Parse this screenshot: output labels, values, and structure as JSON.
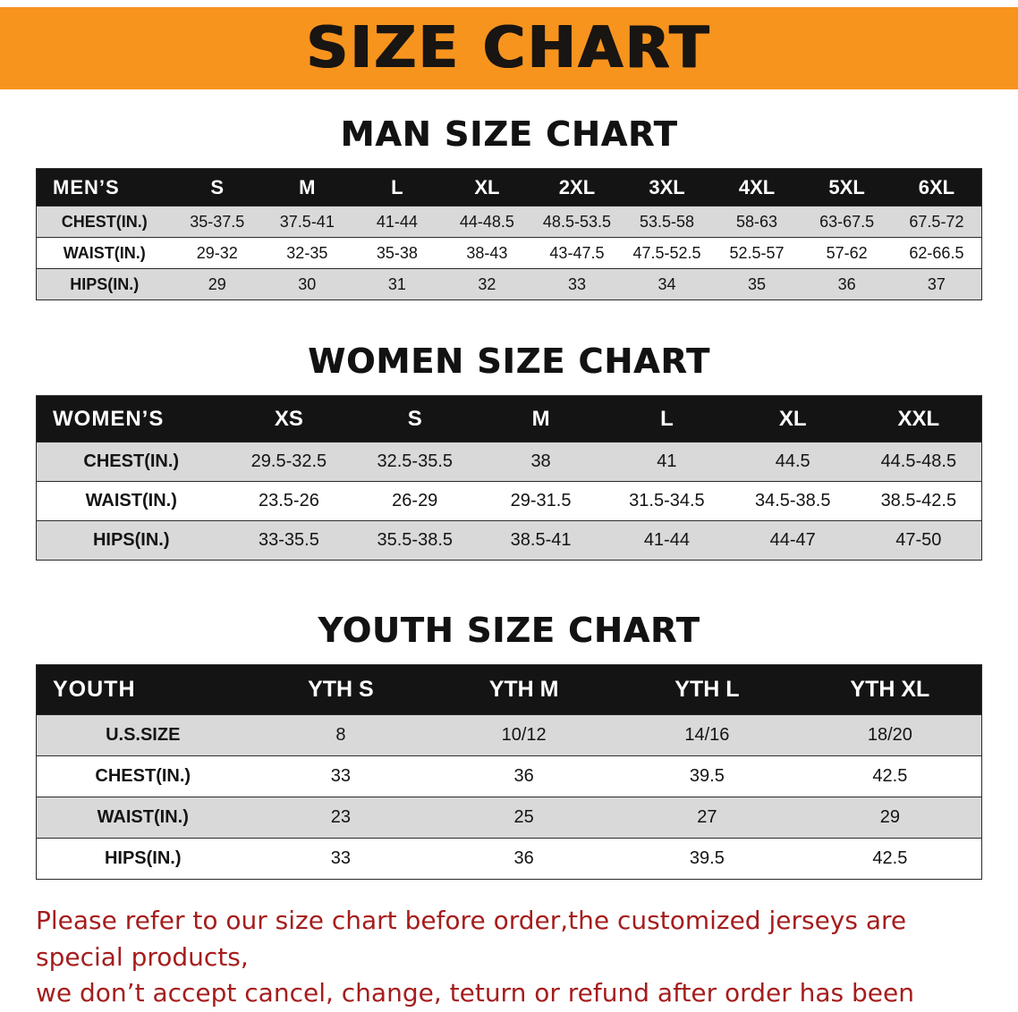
{
  "banner": {
    "title": "SIZE CHART"
  },
  "colors": {
    "banner_bg": "#f7941e",
    "table_header_bg": "#141414",
    "row_stripe": "#d9d9d9",
    "disclaimer_color": "#a51d1d"
  },
  "sections": [
    {
      "heading": "MAN SIZE CHART",
      "table": {
        "name": "mens-size-table",
        "header_label": "MEN’S",
        "columns": [
          "S",
          "M",
          "L",
          "XL",
          "2XL",
          "3XL",
          "4XL",
          "5XL",
          "6XL"
        ],
        "rows": [
          {
            "label": "CHEST(IN.)",
            "values": [
              "35-37.5",
              "37.5-41",
              "41-44",
              "44-48.5",
              "48.5-53.5",
              "53.5-58",
              "58-63",
              "63-67.5",
              "67.5-72"
            ]
          },
          {
            "label": "WAIST(IN.)",
            "values": [
              "29-32",
              "32-35",
              "35-38",
              "38-43",
              "43-47.5",
              "47.5-52.5",
              "52.5-57",
              "57-62",
              "62-66.5"
            ]
          },
          {
            "label": "HIPS(IN.)",
            "values": [
              "29",
              "30",
              "31",
              "32",
              "33",
              "34",
              "35",
              "36",
              "37"
            ]
          }
        ]
      }
    },
    {
      "heading": "WOMEN SIZE CHART",
      "table": {
        "name": "womens-size-table",
        "header_label": "WOMEN’S",
        "columns": [
          "XS",
          "S",
          "M",
          "L",
          "XL",
          "XXL"
        ],
        "rows": [
          {
            "label": "CHEST(IN.)",
            "values": [
              "29.5-32.5",
              "32.5-35.5",
              "38",
              "41",
              "44.5",
              "44.5-48.5"
            ]
          },
          {
            "label": "WAIST(IN.)",
            "values": [
              "23.5-26",
              "26-29",
              "29-31.5",
              "31.5-34.5",
              "34.5-38.5",
              "38.5-42.5"
            ]
          },
          {
            "label": "HIPS(IN.)",
            "values": [
              "33-35.5",
              "35.5-38.5",
              "38.5-41",
              "41-44",
              "44-47",
              "47-50"
            ]
          }
        ]
      }
    },
    {
      "heading": "YOUTH SIZE CHART",
      "table": {
        "name": "youth-size-table",
        "header_label": "YOUTH",
        "columns": [
          "YTH S",
          "YTH M",
          "YTH L",
          "YTH XL"
        ],
        "rows": [
          {
            "label": "U.S.SIZE",
            "values": [
              "8",
              "10/12",
              "14/16",
              "18/20"
            ]
          },
          {
            "label": "CHEST(IN.)",
            "values": [
              "33",
              "36",
              "39.5",
              "42.5"
            ]
          },
          {
            "label": "WAIST(IN.)",
            "values": [
              "23",
              "25",
              "27",
              "29"
            ]
          },
          {
            "label": "HIPS(IN.)",
            "values": [
              "33",
              "36",
              "39.5",
              "42.5"
            ]
          }
        ]
      }
    }
  ],
  "disclaimer": {
    "line1": "Please refer to our size chart before order,the customized jerseys are special products,",
    "line2": "we don’t accept cancel, change, teturn or refund after order has been placed!"
  }
}
